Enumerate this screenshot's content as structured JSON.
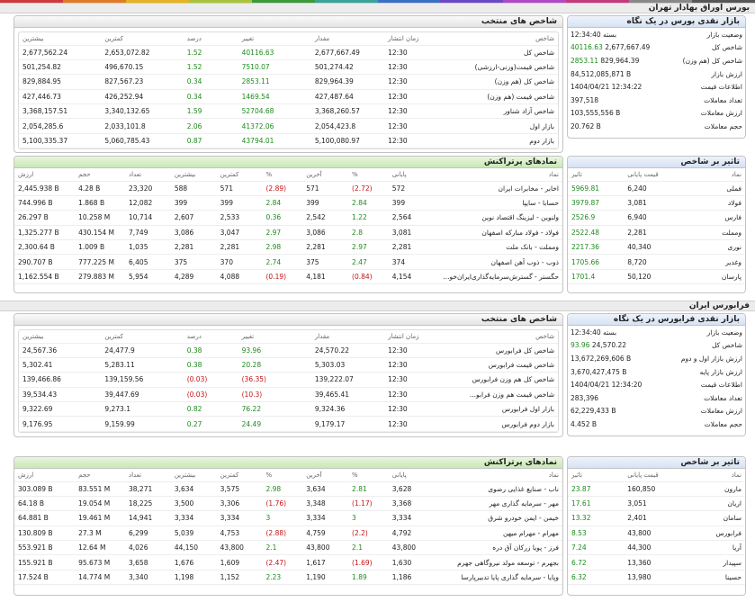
{
  "top_colors": [
    "#d03a3a",
    "#e07b26",
    "#e6b421",
    "#a9c43a",
    "#3a9a3a",
    "#3aa39a",
    "#3a6fc4",
    "#6a4ac4",
    "#b04ac4",
    "#c43a7a",
    "#888888",
    "#555555"
  ],
  "tse": {
    "title": "بورس اوراق بهادار تهران",
    "glance": {
      "title": "بازار نقدی بورس در یک نگاه",
      "rows": [
        {
          "label": "وضعیت بازار",
          "value": "بسته 12:34:40",
          "chg": ""
        },
        {
          "label": "شاخص کل",
          "value": "2,677,667.49",
          "chg": "40116.63"
        },
        {
          "label": "شاخص کل (هم وزن)",
          "value": "829,964.39",
          "chg": "2853.11"
        },
        {
          "label": "ارزش بازار",
          "value": "84,512,085,871 B",
          "chg": ""
        },
        {
          "label": "اطلاعات قیمت",
          "value": "1404/04/21 12:34:22",
          "chg": ""
        },
        {
          "label": "تعداد معاملات",
          "value": "397,518",
          "chg": ""
        },
        {
          "label": "ارزش معاملات",
          "value": "103,555,556 B",
          "chg": ""
        },
        {
          "label": "حجم معاملات",
          "value": "20.762 B",
          "chg": ""
        }
      ]
    },
    "indices": {
      "title": "شاخص های منتخب",
      "headers": [
        "شاخص",
        "زمان انتشار",
        "مقدار",
        "تغییر",
        "درصد",
        "کمترین",
        "بیشترین"
      ],
      "rows": [
        [
          "شاخص کل",
          "12:30",
          "2,677,667.49",
          "40116.63",
          "1.52",
          "2,653,072.82",
          "2,677,562.24"
        ],
        [
          "شاخص قیمت(وزنی-ارزشی)",
          "12:30",
          "501,274.42",
          "7510.07",
          "1.52",
          "496,670.15",
          "501,254.82"
        ],
        [
          "شاخص کل (هم وزن)",
          "12:30",
          "829,964.39",
          "2853.11",
          "0.34",
          "827,567.23",
          "829,884.95"
        ],
        [
          "شاخص قیمت (هم وزن)",
          "12:30",
          "427,487.64",
          "1469.54",
          "0.34",
          "426,252.94",
          "427,446.73"
        ],
        [
          "شاخص آزاد شناور",
          "12:30",
          "3,368,260.57",
          "52704.68",
          "1.59",
          "3,340,132.65",
          "3,368,157.51"
        ],
        [
          "بازار اول",
          "12:30",
          "2,054,423.8",
          "41372.06",
          "2.06",
          "2,033,101.8",
          "2,054,285.6"
        ],
        [
          "بازار دوم",
          "12:30",
          "5,100,080.97",
          "43794.01",
          "0.87",
          "5,060,785.43",
          "5,100,335.37"
        ]
      ]
    },
    "impact": {
      "title": "تاثیر بر شاخص",
      "headers": [
        "نماد",
        "قیمت پایانی",
        "تاثیر"
      ],
      "rows": [
        [
          "فملی",
          "6,240",
          "5969.81"
        ],
        [
          "فولاد",
          "3,081",
          "3979.87"
        ],
        [
          "فارس",
          "6,940",
          "2526.9"
        ],
        [
          "ومملت",
          "2,281",
          "2522.48"
        ],
        [
          "نوری",
          "40,340",
          "2217.36"
        ],
        [
          "وغدیر",
          "8,720",
          "1705.66"
        ],
        [
          "پارسان",
          "50,120",
          "1701.4"
        ]
      ]
    },
    "active": {
      "title": "نمادهای پرتراکنش",
      "headers": [
        "نماد",
        "پایانی",
        "%",
        "آخرین",
        "%",
        "کمترین",
        "بیشترین",
        "تعداد",
        "حجم",
        "ارزش"
      ],
      "rows": [
        [
          "اخابر - مخابرات ایران",
          "572",
          "(2.72)",
          "571",
          "(2.89)",
          "571",
          "588",
          "23,320",
          "4.28 B",
          "2,445.938 B"
        ],
        [
          "حسابا - سایپا",
          "399",
          "2.84",
          "399",
          "2.84",
          "399",
          "399",
          "12,082",
          "1.868 B",
          "744.996 B"
        ],
        [
          "ولنوین - لیزینگ اقتصاد نوین",
          "2,564",
          "1.22",
          "2,542",
          "0.36",
          "2,533",
          "2,607",
          "10,714",
          "10.258 M",
          "26.297 B"
        ],
        [
          "فولاد - فولاد مبارکه اصفهان",
          "3,081",
          "2.8",
          "3,086",
          "2.97",
          "3,047",
          "3,086",
          "7,749",
          "430.154 M",
          "1,325.277 B"
        ],
        [
          "ومملت - بانک ملت",
          "2,281",
          "2.97",
          "2,281",
          "2.98",
          "2,281",
          "2,281",
          "1,035",
          "1.009 B",
          "2,300.64 B"
        ],
        [
          "ذوب - ذوب آهن اصفهان",
          "374",
          "2.47",
          "375",
          "2.74",
          "370",
          "375",
          "6,405",
          "777.225 M",
          "290.707 B"
        ],
        [
          "حگستر - گسترش‌سرمایه‌گذاری‌ایران‌خو...",
          "4,154",
          "(0.84)",
          "4,181",
          "(0.19)",
          "4,088",
          "4,289",
          "5,954",
          "279.883 M",
          "1,162.554 B"
        ]
      ]
    }
  },
  "ifb": {
    "title": "فرابورس ایران",
    "glance": {
      "title": "بازار نقدی فرابورس در یک نگاه",
      "rows": [
        {
          "label": "وضعیت بازار",
          "value": "بسته 12:34:40",
          "chg": ""
        },
        {
          "label": "شاخص کل",
          "value": "24,570.22",
          "chg": "93.96"
        },
        {
          "label": "ارزش بازار اول و دوم",
          "value": "13,672,269,606 B",
          "chg": ""
        },
        {
          "label": "ارزش بازار پایه",
          "value": "3,670,427,475 B",
          "chg": ""
        },
        {
          "label": "اطلاعات قیمت",
          "value": "1404/04/21 12:34:20",
          "chg": ""
        },
        {
          "label": "تعداد معاملات",
          "value": "283,396",
          "chg": ""
        },
        {
          "label": "ارزش معاملات",
          "value": "62,229,433 B",
          "chg": ""
        },
        {
          "label": "حجم معاملات",
          "value": "4.452 B",
          "chg": ""
        }
      ]
    },
    "indices": {
      "title": "شاخص های منتخب",
      "headers": [
        "شاخص",
        "زمان انتشار",
        "مقدار",
        "تغییر",
        "درصد",
        "کمترین",
        "بیشترین"
      ],
      "rows": [
        [
          "شاخص کل فرابورس",
          "12:30",
          "24,570.22",
          "93.96",
          "0.38",
          "24,477.9",
          "24,567.36"
        ],
        [
          "شاخص قیمت فرابورس",
          "12:30",
          "5,303.03",
          "20.28",
          "0.38",
          "5,283.11",
          "5,302.41"
        ],
        [
          "شاخص کل هم وزن فرابورس",
          "12:30",
          "139,222.07",
          "(36.35)",
          "(0.03)",
          "139,159.56",
          "139,466.86"
        ],
        [
          "شاخص قیمت هم وزن فرابو...",
          "12:30",
          "39,465.41",
          "(10.3)",
          "(0.03)",
          "39,447.69",
          "39,534.43"
        ],
        [
          "بازار اول فرابورس",
          "12:30",
          "9,324.36",
          "76.22",
          "0.82",
          "9,273.1",
          "9,322.69"
        ],
        [
          "بازار دوم فرابورس",
          "12:30",
          "9,179.17",
          "24.49",
          "0.27",
          "9,159.99",
          "9,176.95"
        ]
      ]
    },
    "impact": {
      "title": "تاثیر بر شاخص",
      "headers": [
        "نماد",
        "قیمت پایانی",
        "تاثیر"
      ],
      "rows": [
        [
          "مارون",
          "160,850",
          "23.87"
        ],
        [
          "اریان",
          "3,051",
          "17.61"
        ],
        [
          "سامان",
          "2,401",
          "13.32"
        ],
        [
          "فرابورس",
          "43,800",
          "8.53"
        ],
        [
          "آریا",
          "44,300",
          "7.24"
        ],
        [
          "سپیدار",
          "13,360",
          "6.72"
        ],
        [
          "حسینا",
          "13,980",
          "6.32"
        ]
      ]
    },
    "active": {
      "title": "نمادهای پرتراکنش",
      "headers": [
        "نماد",
        "پایانی",
        "%",
        "آخرین",
        "%",
        "کمترین",
        "بیشترین",
        "تعداد",
        "حجم",
        "ارزش"
      ],
      "rows": [
        [
          "ناب - صنایع غذایی رضوی",
          "3,628",
          "2.81",
          "3,634",
          "2.98",
          "3,575",
          "3,634",
          "38,271",
          "83.551 M",
          "303.089 B"
        ],
        [
          "مهر - سرمایه گذاری مهر",
          "3,368",
          "(1.17)",
          "3,348",
          "(1.76)",
          "3,306",
          "3,500",
          "18,225",
          "19.054 M",
          "64.18 B"
        ],
        [
          "خیمن - ایمن خودرو شرق",
          "3,334",
          "3",
          "3,334",
          "3",
          "3,334",
          "3,334",
          "14,941",
          "19.461 M",
          "64.881 B"
        ],
        [
          "مهرام - مهرام میهن",
          "4,792",
          "(2.2)",
          "4,759",
          "(2.88)",
          "4,753",
          "5,039",
          "6,299",
          "27.3 M",
          "130.809 B"
        ],
        [
          "فرز - پویا زرکان آق دره",
          "43,800",
          "2.1",
          "43,800",
          "2.1",
          "43,800",
          "44,150",
          "4,026",
          "12.64 M",
          "553.921 B"
        ],
        [
          "بجهرم - توسعه مولد نیروگاهی جهرم",
          "1,630",
          "(1.69)",
          "1,617",
          "(2.47)",
          "1,609",
          "1,676",
          "3,658",
          "95.673 M",
          "155.921 B"
        ],
        [
          "وپایا - سرمایه گذاری پایا تدبیرپارسا",
          "1,186",
          "1.89",
          "1,190",
          "2.23",
          "1,152",
          "1,198",
          "3,340",
          "14.774 M",
          "17.524 B"
        ]
      ]
    }
  }
}
